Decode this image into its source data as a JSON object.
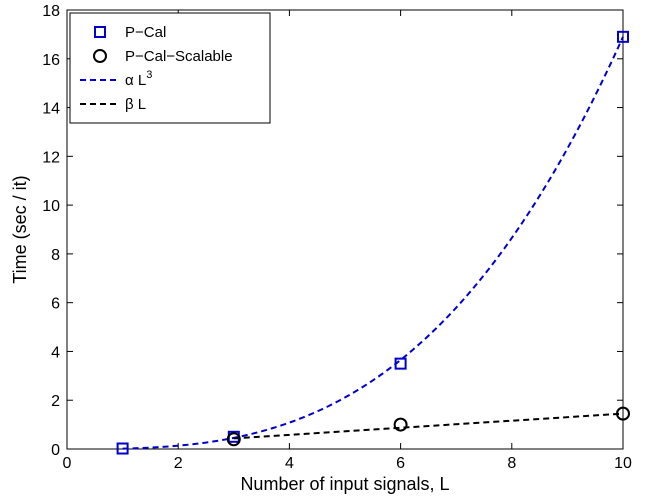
{
  "chart_data": {
    "type": "line",
    "xlabel": "Number of input signals, L",
    "ylabel": "Time (sec / it)",
    "xlim": [
      0,
      10
    ],
    "ylim": [
      0,
      18
    ],
    "xticks": [
      0,
      2,
      4,
      6,
      8,
      10
    ],
    "yticks": [
      0,
      2,
      4,
      6,
      8,
      10,
      12,
      14,
      16,
      18
    ],
    "grid": false,
    "legend_position": "top-left",
    "series": [
      {
        "name": "P−Cal",
        "kind": "markers",
        "marker": "square",
        "color": "#0000cc",
        "x": [
          1,
          3,
          6,
          10
        ],
        "y": [
          0.02,
          0.5,
          3.5,
          16.9
        ]
      },
      {
        "name": "P−Cal−Scalable",
        "kind": "markers",
        "marker": "circle",
        "color": "#000000",
        "x": [
          3,
          6,
          10
        ],
        "y": [
          0.4,
          1.0,
          1.45
        ]
      },
      {
        "name": "α L",
        "name_superscript": "3",
        "kind": "dashed-curve",
        "color": "#0000cc",
        "model": "cubic",
        "coefficient": 0.0169,
        "x_range": [
          1,
          10
        ]
      },
      {
        "name": "β L",
        "kind": "dashed-curve",
        "color": "#000000",
        "model": "linear",
        "coefficient": 0.145,
        "x_range": [
          3,
          10
        ]
      }
    ]
  }
}
